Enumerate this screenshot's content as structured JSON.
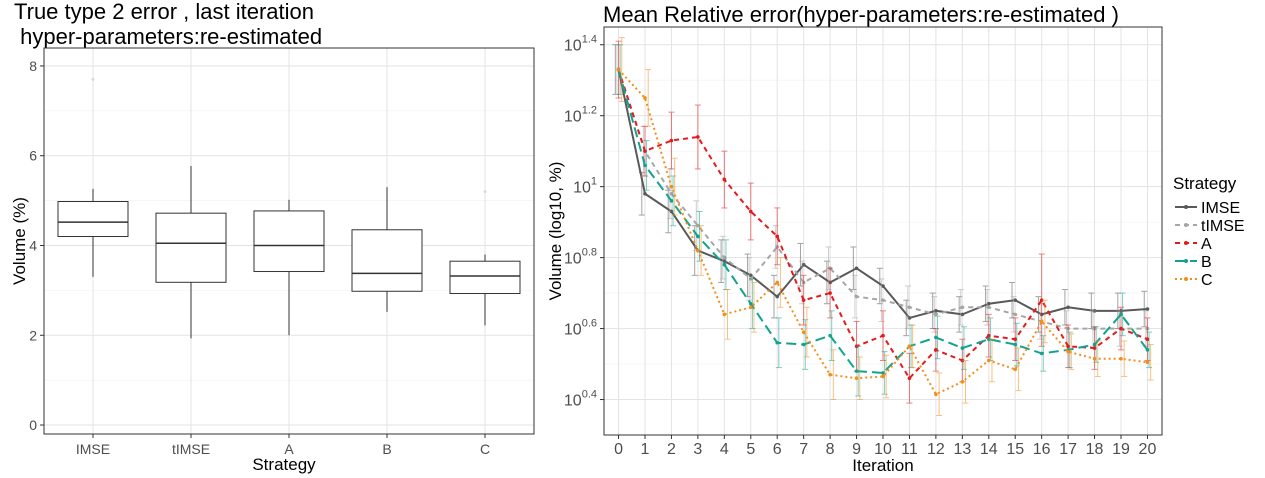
{
  "chart_data": [
    {
      "type": "box",
      "title_lines": [
        "True type 2 error , last iteration",
        " hyper-parameters:re-estimated"
      ],
      "xlabel": "Strategy",
      "ylabel": "Volume (%)",
      "ylim": [
        -0.2,
        8.4
      ],
      "yticks": [
        0,
        2,
        4,
        6,
        8
      ],
      "grid": true,
      "categories": [
        "IMSE",
        "tIMSE",
        "A",
        "B",
        "C"
      ],
      "boxes": [
        {
          "min": 3.3,
          "q1": 4.2,
          "median": 4.52,
          "q3": 4.98,
          "max": 5.26,
          "outliers": [
            7.7
          ]
        },
        {
          "min": 1.93,
          "q1": 3.18,
          "median": 4.05,
          "q3": 4.72,
          "max": 5.77,
          "outliers": []
        },
        {
          "min": 2.0,
          "q1": 3.42,
          "median": 4.0,
          "q3": 4.77,
          "max": 5.02,
          "outliers": []
        },
        {
          "min": 2.52,
          "q1": 2.98,
          "median": 3.38,
          "q3": 4.35,
          "max": 5.3,
          "outliers": []
        },
        {
          "min": 2.22,
          "q1": 2.93,
          "median": 3.32,
          "q3": 3.65,
          "max": 3.8,
          "outliers": [
            5.2
          ]
        }
      ]
    },
    {
      "type": "line",
      "title": "Mean Relative error(hyper-parameters:re-estimated )",
      "xlabel": "Iteration",
      "ylabel": "Volume (log10, %)",
      "y_scale": "log10",
      "x": [
        0,
        1,
        2,
        3,
        4,
        5,
        6,
        7,
        8,
        9,
        10,
        11,
        12,
        13,
        14,
        15,
        16,
        17,
        18,
        19,
        20
      ],
      "xlim": [
        -0.55,
        20.55
      ],
      "ylim_log10": [
        0.3,
        1.45
      ],
      "ytick_exponents": [
        "0.4",
        "0.6",
        "0.8",
        "1",
        "1.2",
        "1.4"
      ],
      "ytick_base": "10",
      "grid": true,
      "legend_title": "Strategy",
      "legend_position": "right",
      "series": [
        {
          "name": "IMSE",
          "color": "#595959",
          "dash": "solid",
          "values": [
            1.33,
            0.98,
            0.93,
            0.82,
            0.79,
            0.75,
            0.69,
            0.78,
            0.73,
            0.77,
            0.72,
            0.63,
            0.65,
            0.64,
            0.67,
            0.68,
            0.64,
            0.66,
            0.65,
            0.65,
            0.655
          ],
          "err": [
            0.07,
            0.06,
            0.06,
            0.07,
            0.06,
            0.06,
            0.06,
            0.06,
            0.06,
            0.06,
            0.05,
            0.05,
            0.05,
            0.05,
            0.05,
            0.05,
            0.05,
            0.05,
            0.05,
            0.05,
            0.05
          ]
        },
        {
          "name": "tIMSE",
          "color": "#a6a6a6",
          "dash": "dashed",
          "values": [
            1.33,
            1.1,
            0.98,
            0.89,
            0.8,
            0.74,
            0.83,
            0.73,
            0.77,
            0.69,
            0.68,
            0.66,
            0.64,
            0.66,
            0.66,
            0.64,
            0.62,
            0.6,
            0.6,
            0.6,
            0.6
          ],
          "err": [
            0.07,
            0.07,
            0.07,
            0.07,
            0.06,
            0.06,
            0.06,
            0.06,
            0.06,
            0.06,
            0.06,
            0.06,
            0.05,
            0.05,
            0.05,
            0.05,
            0.05,
            0.05,
            0.05,
            0.05,
            0.05
          ]
        },
        {
          "name": "A",
          "color": "#e41a1c",
          "dash": "dashed",
          "values": [
            1.33,
            1.1,
            1.13,
            1.14,
            1.02,
            0.93,
            0.86,
            0.68,
            0.7,
            0.55,
            0.58,
            0.46,
            0.54,
            0.51,
            0.58,
            0.57,
            0.68,
            0.55,
            0.545,
            0.6,
            0.57
          ],
          "err": [
            0.08,
            0.07,
            0.08,
            0.09,
            0.08,
            0.08,
            0.08,
            0.07,
            0.07,
            0.07,
            0.07,
            0.07,
            0.06,
            0.06,
            0.06,
            0.06,
            0.13,
            0.06,
            0.06,
            0.06,
            0.06
          ]
        },
        {
          "name": "B",
          "color": "#11a390",
          "dash": "longdash",
          "values": [
            1.33,
            1.06,
            0.96,
            0.86,
            0.78,
            0.67,
            0.56,
            0.555,
            0.58,
            0.48,
            0.475,
            0.55,
            0.575,
            0.545,
            0.57,
            0.555,
            0.53,
            0.54,
            0.555,
            0.64,
            0.54
          ],
          "err": [
            0.07,
            0.07,
            0.07,
            0.07,
            0.07,
            0.07,
            0.07,
            0.07,
            0.07,
            0.07,
            0.06,
            0.06,
            0.06,
            0.06,
            0.06,
            0.06,
            0.05,
            0.05,
            0.05,
            0.06,
            0.05
          ]
        },
        {
          "name": "C",
          "color": "#f28e1c",
          "dash": "dotted",
          "values": [
            1.33,
            1.25,
            1.0,
            0.82,
            0.64,
            0.66,
            0.73,
            0.59,
            0.47,
            0.46,
            0.465,
            0.55,
            0.415,
            0.45,
            0.51,
            0.485,
            0.62,
            0.535,
            0.515,
            0.515,
            0.505
          ],
          "err": [
            0.09,
            0.08,
            0.08,
            0.07,
            0.07,
            0.07,
            0.07,
            0.07,
            0.07,
            0.06,
            0.06,
            0.06,
            0.06,
            0.06,
            0.06,
            0.06,
            0.06,
            0.05,
            0.05,
            0.05,
            0.05
          ]
        }
      ]
    }
  ]
}
